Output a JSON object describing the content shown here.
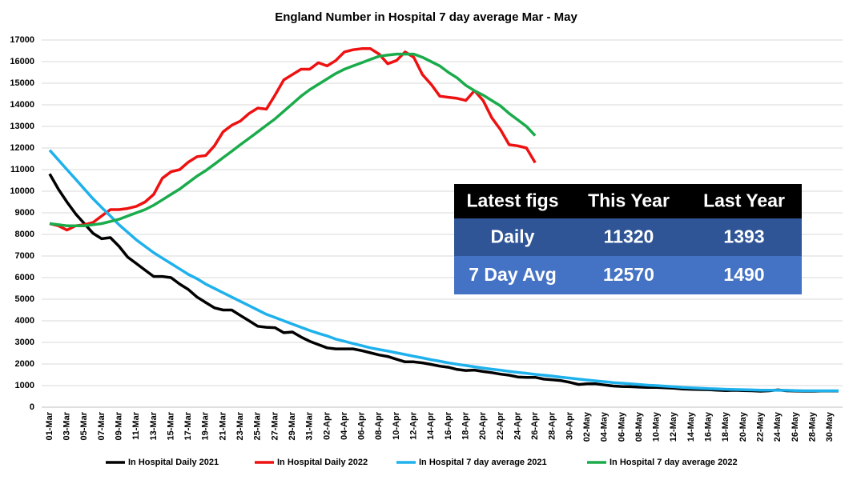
{
  "chart_data": {
    "type": "line",
    "title": "England Number in Hospital 7 day average Mar - May",
    "categories": [
      "01-Mar",
      null,
      "03-Mar",
      null,
      "05-Mar",
      null,
      "07-Mar",
      null,
      "09-Mar",
      null,
      "11-Mar",
      null,
      "13-Mar",
      null,
      "15-Mar",
      null,
      "17-Mar",
      null,
      "19-Mar",
      null,
      "21-Mar",
      null,
      "23-Mar",
      null,
      "25-Mar",
      null,
      "27-Mar",
      null,
      "29-Mar",
      null,
      "31-Mar",
      null,
      "02-Apr",
      null,
      "04-Apr",
      null,
      "06-Apr",
      null,
      "08-Apr",
      null,
      "10-Apr",
      null,
      "12-Apr",
      null,
      "14-Apr",
      null,
      "16-Apr",
      null,
      "18-Apr",
      null,
      "20-Apr",
      null,
      "22-Apr",
      null,
      "24-Apr",
      null,
      "26-Apr",
      null,
      "28-Apr",
      null,
      "30-Apr",
      null,
      "02-May",
      null,
      "04-May",
      null,
      "06-May",
      null,
      "08-May",
      null,
      "10-May",
      null,
      "12-May",
      null,
      "14-May",
      null,
      "16-May",
      null,
      "18-May",
      null,
      "20-May",
      null,
      "22-May",
      null,
      "24-May",
      null,
      "26-May",
      null,
      "28-May",
      null,
      "30-May",
      null
    ],
    "series": [
      {
        "name": "In Hospital Daily 2021",
        "color": "#000000",
        "values": [
          10800,
          10100,
          9500,
          8950,
          8500,
          8050,
          7800,
          7850,
          7450,
          6950,
          6650,
          6350,
          6050,
          6050,
          6000,
          5700,
          5450,
          5100,
          4850,
          4600,
          4500,
          4500,
          4250,
          4000,
          3750,
          3700,
          3680,
          3450,
          3480,
          3250,
          3050,
          2900,
          2750,
          2700,
          2700,
          2700,
          2620,
          2520,
          2420,
          2350,
          2220,
          2100,
          2100,
          2050,
          1980,
          1900,
          1850,
          1750,
          1700,
          1720,
          1650,
          1600,
          1530,
          1480,
          1400,
          1380,
          1380,
          1300,
          1270,
          1230,
          1150,
          1050,
          1080,
          1080,
          1030,
          980,
          960,
          950,
          930,
          920,
          920,
          900,
          880,
          840,
          830,
          820,
          810,
          790,
          770,
          780,
          770,
          760,
          740,
          760,
          800,
          760,
          750,
          740,
          740,
          750,
          750,
          750
        ]
      },
      {
        "name": "In Hospital Daily 2022",
        "color": "#ee1111",
        "values": [
          8500,
          8400,
          8200,
          8400,
          8450,
          8550,
          8850,
          9150,
          9150,
          9200,
          9300,
          9500,
          9850,
          10600,
          10900,
          11000,
          11350,
          11600,
          11650,
          12100,
          12750,
          13050,
          13250,
          13600,
          13850,
          13800,
          14450,
          15150,
          15400,
          15650,
          15650,
          15950,
          15800,
          16050,
          16450,
          16550,
          16600,
          16600,
          16350,
          15900,
          16050,
          16450,
          16200,
          15400,
          14950,
          14400,
          14350,
          14300,
          14200,
          14650,
          14200,
          13400,
          12850,
          12150,
          12100,
          12000,
          11320,
          null,
          null,
          null,
          null,
          null,
          null,
          null,
          null,
          null,
          null,
          null,
          null,
          null,
          null,
          null,
          null,
          null,
          null,
          null,
          null,
          null,
          null,
          null,
          null,
          null,
          null,
          null,
          null,
          null,
          null,
          null,
          null,
          null,
          null,
          null
        ]
      },
      {
        "name": "In Hospital 7 day average 2021",
        "color": "#1fb1ec",
        "values": [
          11900,
          11450,
          11000,
          10550,
          10100,
          9650,
          9250,
          8850,
          8450,
          8100,
          7750,
          7450,
          7150,
          6900,
          6650,
          6400,
          6150,
          5950,
          5700,
          5500,
          5300,
          5100,
          4900,
          4700,
          4500,
          4300,
          4150,
          4000,
          3850,
          3700,
          3550,
          3420,
          3300,
          3150,
          3050,
          2950,
          2850,
          2750,
          2670,
          2600,
          2520,
          2440,
          2360,
          2280,
          2200,
          2130,
          2050,
          1990,
          1930,
          1870,
          1810,
          1760,
          1710,
          1660,
          1610,
          1570,
          1520,
          1480,
          1440,
          1390,
          1350,
          1300,
          1260,
          1220,
          1180,
          1140,
          1110,
          1080,
          1050,
          1020,
          1000,
          970,
          950,
          920,
          900,
          880,
          860,
          850,
          830,
          820,
          810,
          800,
          790,
          790,
          780,
          780,
          770,
          760,
          760,
          760,
          760,
          760
        ]
      },
      {
        "name": "In Hospital 7 day average 2022",
        "color": "#1aab4b",
        "values": [
          8500,
          8450,
          8400,
          8400,
          8400,
          8450,
          8500,
          8600,
          8700,
          8850,
          9000,
          9150,
          9350,
          9600,
          9850,
          10100,
          10400,
          10700,
          10950,
          11250,
          11550,
          11850,
          12150,
          12450,
          12750,
          13050,
          13350,
          13700,
          14050,
          14400,
          14700,
          14950,
          15200,
          15450,
          15650,
          15800,
          15950,
          16100,
          16250,
          16300,
          16350,
          16350,
          16350,
          16200,
          16000,
          15800,
          15500,
          15250,
          14900,
          14650,
          14450,
          14200,
          13950,
          13600,
          13300,
          13000,
          12570,
          null,
          null,
          null,
          null,
          null,
          null,
          null,
          null,
          null,
          null,
          null,
          null,
          null,
          null,
          null,
          null,
          null,
          null,
          null,
          null,
          null,
          null,
          null,
          null,
          null,
          null,
          null,
          null,
          null,
          null,
          null,
          null,
          null,
          null,
          null
        ]
      }
    ],
    "ylim": [
      0,
      17000
    ],
    "yticks": [
      0,
      1000,
      2000,
      3000,
      4000,
      5000,
      6000,
      7000,
      8000,
      9000,
      10000,
      11000,
      12000,
      13000,
      14000,
      15000,
      16000,
      17000
    ],
    "grid": true,
    "legend": "bottom",
    "table": {
      "header": [
        "Latest figs",
        "This Year",
        "Last Year"
      ],
      "rows": [
        [
          "Daily",
          11320,
          1393
        ],
        [
          "7 Day Avg",
          12570,
          1490
        ]
      ]
    }
  }
}
